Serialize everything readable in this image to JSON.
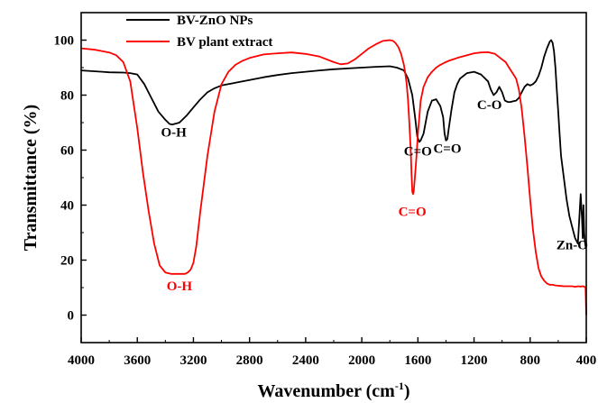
{
  "chart_data": {
    "type": "line",
    "xlabel": "Wavenumber (cm",
    "xlabel_sup": "-1",
    "xlabel_close": ")",
    "ylabel": "Transmittance (%)",
    "xlim": [
      4000,
      400
    ],
    "ylim": [
      -10,
      110
    ],
    "x_ticks": [
      4000,
      3600,
      3200,
      2800,
      2400,
      2000,
      1600,
      1200,
      800,
      400
    ],
    "x_tick_labels": [
      "4000",
      "3600",
      "3200",
      "2800",
      "2400",
      "2000",
      "1600",
      "1200",
      "800",
      "400"
    ],
    "y_ticks": [
      0,
      20,
      40,
      60,
      80,
      100
    ],
    "y_tick_labels": [
      "0",
      "20",
      "40",
      "60",
      "80",
      "100"
    ],
    "grid": false,
    "legend_position": "top-left",
    "colors": {
      "zno": "#000000",
      "extract": "#ff0000"
    },
    "series": [
      {
        "name": "BV-ZnO NPs",
        "color": "#000000",
        "x": [
          4000,
          3850,
          3800,
          3700,
          3650,
          3600,
          3550,
          3500,
          3450,
          3400,
          3370,
          3350,
          3300,
          3250,
          3200,
          3150,
          3100,
          3050,
          3000,
          2950,
          2900,
          2850,
          2800,
          2700,
          2600,
          2500,
          2400,
          2300,
          2200,
          2100,
          2000,
          1900,
          1800,
          1750,
          1700,
          1670,
          1640,
          1620,
          1605,
          1590,
          1580,
          1560,
          1530,
          1500,
          1470,
          1440,
          1420,
          1410,
          1400,
          1390,
          1380,
          1360,
          1340,
          1320,
          1300,
          1250,
          1200,
          1150,
          1100,
          1080,
          1060,
          1040,
          1020,
          1000,
          980,
          960,
          940,
          920,
          900,
          880,
          860,
          840,
          820,
          800,
          780,
          760,
          740,
          720,
          700,
          680,
          660,
          650,
          640,
          630,
          620,
          610,
          600,
          590,
          580,
          560,
          540,
          520,
          500,
          480,
          460,
          440,
          430,
          425,
          420,
          415,
          410,
          405
        ],
        "y": [
          89,
          88.5,
          88.3,
          88.2,
          88,
          87.5,
          84,
          79,
          74,
          71,
          69.5,
          69.3,
          70,
          72.5,
          75.5,
          78.5,
          81,
          82.5,
          83.5,
          84,
          84.5,
          85,
          85.5,
          86.5,
          87.3,
          88,
          88.5,
          89,
          89.4,
          89.7,
          90,
          90.3,
          90.5,
          90,
          89,
          86,
          80,
          72,
          65,
          63,
          63.5,
          66,
          74,
          78,
          78.5,
          76,
          72,
          66,
          63.5,
          64,
          68,
          75,
          81,
          84,
          86,
          88,
          88.5,
          87.5,
          85,
          82,
          80,
          81,
          83,
          81,
          78,
          77.5,
          77.5,
          77.8,
          78,
          79,
          81,
          83,
          84,
          83.5,
          84,
          85,
          87,
          90,
          94,
          97,
          99.5,
          100,
          99,
          96,
          90,
          82,
          74,
          66,
          58,
          50,
          42,
          36,
          32,
          28,
          26,
          44,
          35,
          28,
          40,
          30,
          27,
          25
        ]
      },
      {
        "name": "BV plant extract",
        "color": "#ff0000",
        "x": [
          4000,
          3900,
          3800,
          3750,
          3700,
          3650,
          3600,
          3560,
          3520,
          3480,
          3440,
          3400,
          3360,
          3340,
          3320,
          3300,
          3280,
          3260,
          3240,
          3220,
          3200,
          3180,
          3150,
          3100,
          3050,
          3000,
          2950,
          2900,
          2850,
          2800,
          2700,
          2600,
          2500,
          2400,
          2300,
          2200,
          2150,
          2100,
          2050,
          2000,
          1950,
          1900,
          1850,
          1800,
          1780,
          1760,
          1740,
          1720,
          1700,
          1690,
          1680,
          1670,
          1660,
          1650,
          1645,
          1640,
          1635,
          1630,
          1620,
          1610,
          1600,
          1590,
          1580,
          1560,
          1530,
          1500,
          1470,
          1440,
          1410,
          1380,
          1350,
          1320,
          1300,
          1250,
          1200,
          1150,
          1100,
          1050,
          1000,
          975,
          950,
          925,
          900,
          880,
          860,
          840,
          820,
          800,
          780,
          760,
          740,
          720,
          700,
          680,
          660,
          640,
          620,
          600,
          580,
          560,
          540,
          520,
          500,
          480,
          460,
          440,
          420,
          405,
          400
        ],
        "y": [
          97,
          96.5,
          95.5,
          94.5,
          92,
          85,
          68,
          52,
          38,
          26,
          18,
          15.5,
          15,
          15,
          15,
          15,
          15,
          15,
          15.5,
          16.5,
          19,
          25,
          38,
          58,
          74,
          84,
          88.5,
          91,
          92.5,
          93.5,
          94.8,
          95.2,
          95.5,
          95,
          94,
          92,
          91.2,
          91.5,
          93,
          95,
          97,
          98.5,
          99.7,
          100,
          99.8,
          99,
          97.5,
          95,
          91,
          88,
          84,
          78,
          69,
          58,
          51,
          45,
          44,
          45,
          51,
          58,
          66,
          72,
          78,
          83,
          86.5,
          88.5,
          90,
          91,
          91.8,
          92.5,
          93,
          93.5,
          93.8,
          94.5,
          95.2,
          95.5,
          95.6,
          95,
          93,
          92,
          90,
          88,
          86,
          82,
          75,
          65,
          54,
          42,
          31,
          23,
          17,
          14,
          12.5,
          11.5,
          11,
          11,
          10.8,
          10.7,
          10.6,
          10.5,
          10.5,
          10.5,
          10.5,
          10.3,
          10.5,
          10.4,
          10.5,
          10,
          0
        ]
      }
    ],
    "legend": [
      {
        "label": "BV-ZnO NPs",
        "color": "#000000"
      },
      {
        "label": "BV plant extract",
        "color": "#ff0000"
      }
    ],
    "annotations": [
      {
        "text": "O-H",
        "x": 3340,
        "y": 65,
        "color": "#000000"
      },
      {
        "text": "O-H",
        "x": 3300,
        "y": 9,
        "color": "#ff0000"
      },
      {
        "text": "C=O",
        "x": 1600,
        "y": 58,
        "color": "#000000"
      },
      {
        "text": "C=O",
        "x": 1390,
        "y": 59,
        "color": "#000000"
      },
      {
        "text": "C=O",
        "x": 1640,
        "y": 36,
        "color": "#ff0000"
      },
      {
        "text": "C-O",
        "x": 1090,
        "y": 75,
        "color": "#000000"
      },
      {
        "text": "Zn-O",
        "x": 500,
        "y": 24,
        "color": "#000000"
      }
    ]
  }
}
